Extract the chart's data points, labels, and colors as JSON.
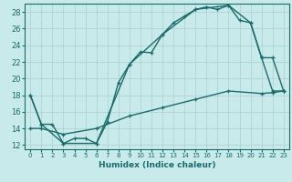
{
  "xlabel": "Humidex (Indice chaleur)",
  "bg_color": "#c8eaea",
  "grid_color": "#b0d4d4",
  "line_color": "#1a6b6b",
  "xlim": [
    -0.5,
    23.5
  ],
  "ylim": [
    11.5,
    29
  ],
  "xticks": [
    0,
    1,
    2,
    3,
    4,
    5,
    6,
    7,
    8,
    9,
    10,
    11,
    12,
    13,
    14,
    15,
    16,
    17,
    18,
    19,
    20,
    21,
    22,
    23
  ],
  "yticks": [
    12,
    14,
    16,
    18,
    20,
    22,
    24,
    26,
    28
  ],
  "line1_x": [
    0,
    1,
    2,
    3,
    4,
    5,
    6,
    7,
    8,
    9,
    10,
    11,
    12,
    13,
    14,
    15,
    16,
    17,
    18,
    19,
    20,
    21,
    22,
    23
  ],
  "line1_y": [
    18,
    14.5,
    14.5,
    12.2,
    12.8,
    12.8,
    12.2,
    14.8,
    19.5,
    21.7,
    23.2,
    23.1,
    25.3,
    26.7,
    27.5,
    28.3,
    28.6,
    28.3,
    28.8,
    27.0,
    26.7,
    22.5,
    18.5,
    18.5
  ],
  "line2_x": [
    0,
    1,
    3,
    6,
    9,
    12,
    15,
    18,
    20,
    21,
    22,
    23
  ],
  "line2_y": [
    18,
    14.5,
    12.2,
    12.2,
    21.7,
    25.3,
    28.3,
    28.8,
    26.7,
    22.5,
    22.5,
    18.5
  ],
  "line3_x": [
    0,
    1,
    3,
    6,
    9,
    12,
    15,
    18,
    21,
    22,
    23
  ],
  "line3_y": [
    14,
    14,
    13.3,
    14,
    15.5,
    16.5,
    17.5,
    18.5,
    18.2,
    18.3,
    18.5
  ]
}
